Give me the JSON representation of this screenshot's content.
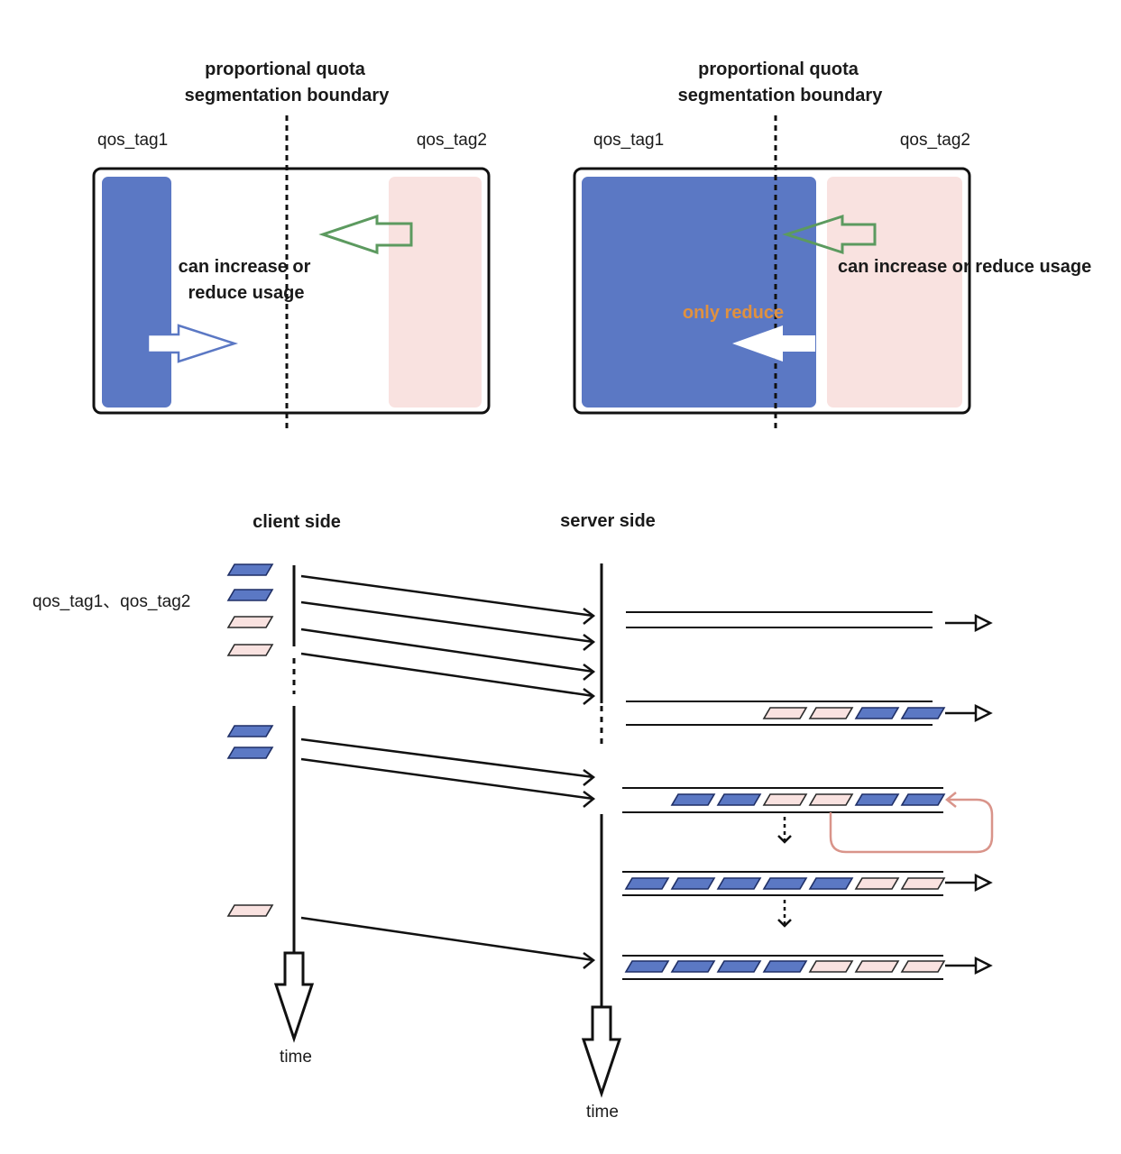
{
  "colors": {
    "tag1": "#5b78c4",
    "tag1_stroke": "#1f2f66",
    "tag2": "#f9e2e0",
    "tag2_stroke": "#2a2a2a",
    "green_arrow": "#5c9a5f",
    "blue_outline_arrow": "#5b78c4",
    "orange_text": "#e0913f",
    "requeue_arrow": "#d9948a",
    "ink": "#111111"
  },
  "panel_left": {
    "boundary_label_line1": "proportional quota",
    "boundary_label_line2": "segmentation boundary",
    "tag1_label": "qos_tag1",
    "tag2_label": "qos_tag2",
    "note_line1": "can increase or",
    "note_line2": "reduce usage"
  },
  "panel_right": {
    "boundary_label_line1": "proportional quota",
    "boundary_label_line2": "segmentation boundary",
    "tag1_label": "qos_tag1",
    "tag2_label": "qos_tag2",
    "note": "can increase or reduce usage",
    "reduce_note": "only reduce"
  },
  "timeline": {
    "client_title": "client side",
    "server_title": "server side",
    "tags_label": "qos_tag1、qos_tag2",
    "client_time_label": "time",
    "server_time_label": "time",
    "client_groups": [
      [
        "tag1",
        "tag1",
        "tag2",
        "tag2"
      ],
      [
        "tag1",
        "tag1"
      ],
      [
        "tag2"
      ]
    ],
    "server_queues": [
      [
        "empty"
      ],
      [
        "tag2",
        "tag2",
        "tag1",
        "tag1"
      ],
      [
        "tag1",
        "tag1",
        "tag2",
        "tag2",
        "tag1",
        "tag1"
      ],
      [
        "tag1",
        "tag1",
        "tag1",
        "tag1",
        "tag1",
        "tag2",
        "tag2"
      ],
      [
        "tag1",
        "tag1",
        "tag1",
        "tag1",
        "tag2",
        "tag2",
        "tag2"
      ]
    ]
  }
}
